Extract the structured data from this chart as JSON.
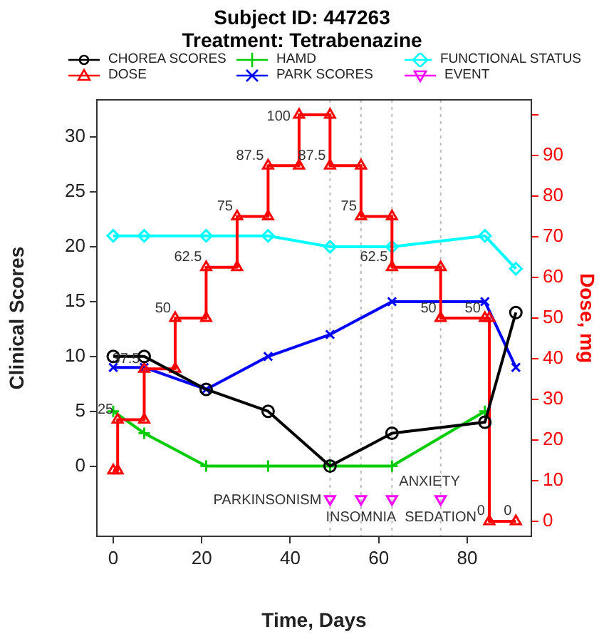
{
  "chart_data": {
    "type": "line",
    "title": "Subject ID: 447263",
    "subtitle": "Treatment: Tetrabenazine",
    "xlabel": "Time, Days",
    "ylabel": "Clinical Scores",
    "y2label": "Dose, mg",
    "xlim": [
      -3.7,
      94.5
    ],
    "xticks": [
      0,
      20,
      40,
      60,
      80
    ],
    "ylim": [
      -6.4,
      33.4
    ],
    "yticks": [
      0,
      5,
      10,
      15,
      20,
      25,
      30
    ],
    "y2lim": [
      -3.7,
      103.7
    ],
    "y2ticks": [
      0,
      10,
      20,
      30,
      40,
      50,
      60,
      70,
      80,
      90,
      {
        "value": 100,
        "label": null
      }
    ],
    "grid": false,
    "legend": "top",
    "ref_lines": [
      {
        "axis": "x",
        "value": 49,
        "color": "#bbbbbb",
        "line_style": "dotted"
      },
      {
        "axis": "x",
        "value": 56,
        "color": "#bbbbbb",
        "line_style": "dotted"
      },
      {
        "axis": "x",
        "value": 63,
        "color": "#bbbbbb",
        "line_style": "dotted"
      },
      {
        "axis": "x",
        "value": 74,
        "color": "#bbbbbb",
        "line_style": "dotted"
      }
    ],
    "series": [
      {
        "name": "CHOREA SCORES",
        "marker": "circle",
        "color": "#000000",
        "x": [
          0,
          7,
          21,
          35,
          49,
          63,
          84,
          91
        ],
        "values": [
          10,
          10,
          7,
          5,
          0,
          3,
          4,
          14
        ]
      },
      {
        "name": "DOSE",
        "marker": "triangle",
        "axis": "y2",
        "color": "#ff0000",
        "x": [
          0,
          1,
          1,
          7,
          7,
          14,
          14,
          21,
          21,
          28,
          28,
          35,
          35,
          42,
          42,
          49,
          49,
          56,
          56,
          63,
          63,
          74,
          74,
          84,
          85,
          85,
          91
        ],
        "values": [
          12.5,
          12.5,
          25,
          25,
          37.5,
          37.5,
          50,
          50,
          62.5,
          62.5,
          75,
          75,
          87.5,
          87.5,
          100,
          100,
          87.5,
          87.5,
          75,
          75,
          62.5,
          62.5,
          50,
          50,
          50,
          0,
          0
        ],
        "value_labels": [
          null,
          null,
          "25",
          null,
          "37.5",
          null,
          "50",
          null,
          "62.5",
          null,
          "75",
          null,
          "87.5",
          null,
          "100",
          null,
          "87.5",
          null,
          "75",
          null,
          "62.5",
          null,
          "50",
          "50",
          null,
          "0",
          "0"
        ]
      },
      {
        "name": "HAMD",
        "marker": "cross",
        "color": "#00cc00",
        "x": [
          0,
          7,
          21,
          35,
          49,
          63,
          84
        ],
        "values": [
          5,
          3,
          0,
          0,
          0,
          0,
          5
        ]
      },
      {
        "name": "PARK SCORES",
        "marker": "x",
        "color": "#0000ff",
        "x": [
          0,
          7,
          21,
          35,
          49,
          63,
          84,
          91
        ],
        "values": [
          9,
          9,
          7,
          10,
          12,
          15,
          15,
          9
        ]
      },
      {
        "name": "FUNCTIONAL STATUS",
        "marker": "diamond",
        "color": "#00ffff",
        "x": [
          0,
          7,
          21,
          35,
          49,
          63,
          84,
          91
        ],
        "values": [
          21,
          21,
          21,
          21,
          20,
          20,
          21,
          18
        ]
      },
      {
        "name": "EVENT",
        "type": "scatter",
        "marker": "triangle-down",
        "color": "#ff00ff",
        "x": [
          49,
          56,
          63,
          74
        ],
        "values": [
          -3,
          -3,
          -3,
          -3
        ],
        "value_labels": [
          "PARKINSONISM",
          "INSOMNIA",
          "ANXIETY",
          "SEDATION"
        ]
      }
    ]
  }
}
